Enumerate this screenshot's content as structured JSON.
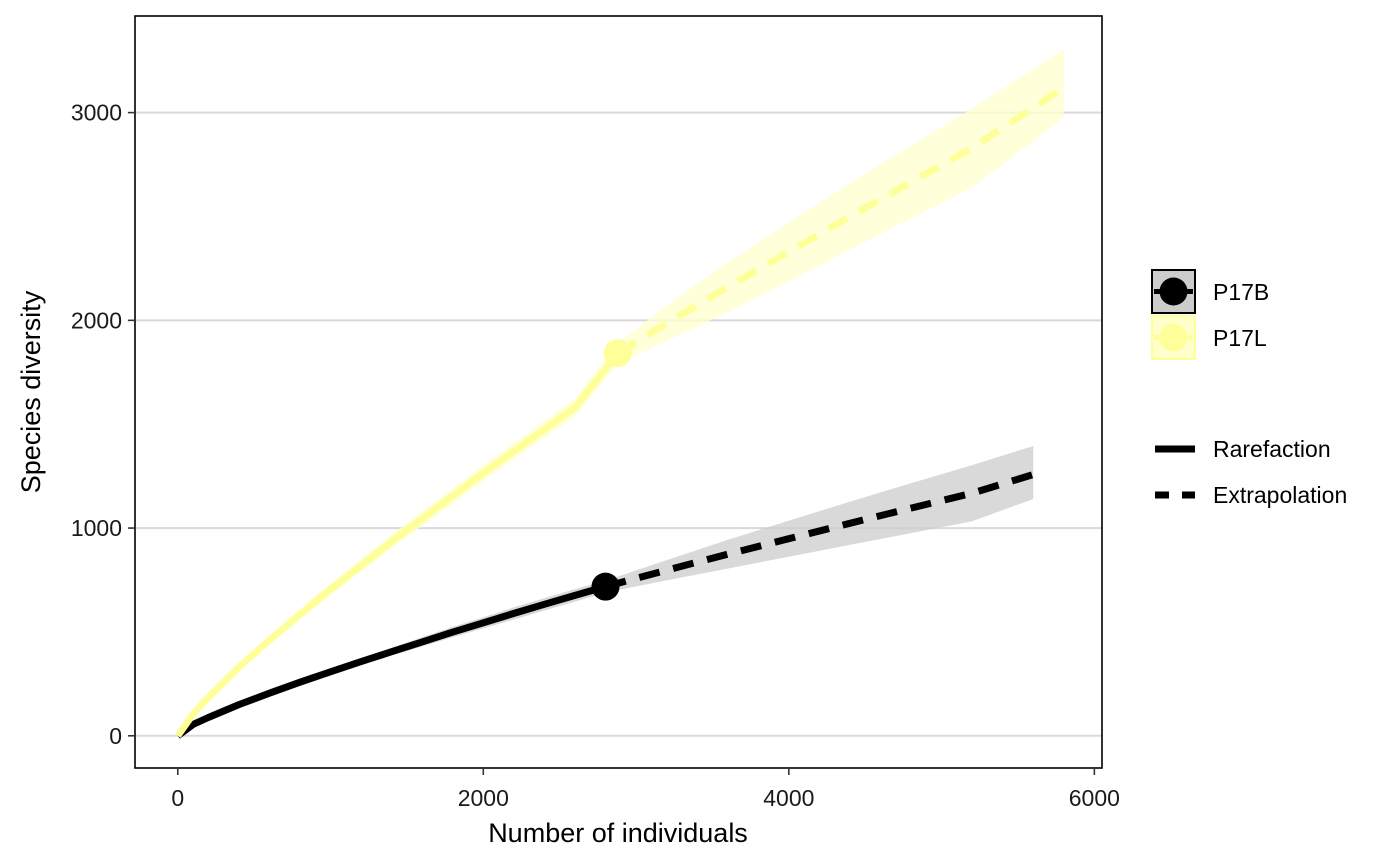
{
  "chart_data": {
    "type": "line",
    "title": "",
    "xlabel": "Number of individuals",
    "ylabel": "Species diversity",
    "xlim": [
      -280,
      6050
    ],
    "ylim": [
      -155,
      3465
    ],
    "xticks": [
      0,
      2000,
      4000,
      6000
    ],
    "yticks": [
      0,
      1000,
      2000,
      3000
    ],
    "xtick_labels": [
      "0",
      "2000",
      "4000",
      "6000"
    ],
    "ytick_labels": [
      "0",
      "1000",
      "2000",
      "3000"
    ],
    "grid": "horizontal major lines only",
    "legend_position": "right",
    "series": [
      {
        "name": "P17B",
        "color": "#000000",
        "band_color": "#cccccc",
        "observed": {
          "x": 2800,
          "y": 718
        },
        "rarefaction": {
          "x": [
            0,
            100,
            200,
            400,
            600,
            800,
            1000,
            1200,
            1400,
            1600,
            1800,
            2000,
            2200,
            2400,
            2600,
            2800
          ],
          "y": [
            0,
            55,
            88,
            150,
            205,
            258,
            308,
            357,
            405,
            452,
            499,
            544,
            589,
            633,
            676,
            718
          ]
        },
        "extrapolation": {
          "x": [
            2800,
            3200,
            3600,
            4000,
            4400,
            4800,
            5200,
            5600
          ],
          "y": [
            718,
            797,
            874,
            949,
            1023,
            1096,
            1168,
            1258
          ]
        },
        "ci_lower": [
          0,
          50,
          80,
          140,
          195,
          246,
          294,
          341,
          386,
          430,
          474,
          517,
          560,
          603,
          646,
          690,
          748,
          805,
          862,
          919,
          976,
          1033,
          1140
        ],
        "ci_upper": [
          0,
          60,
          96,
          160,
          215,
          270,
          322,
          373,
          424,
          474,
          524,
          571,
          618,
          663,
          706,
          746,
          846,
          943,
          1036,
          1127,
          1216,
          1303,
          1395
        ],
        "ci_x": [
          0,
          100,
          200,
          400,
          600,
          800,
          1000,
          1200,
          1400,
          1600,
          1800,
          2000,
          2200,
          2400,
          2600,
          2800,
          3200,
          3600,
          4000,
          4400,
          4800,
          5200,
          5600
        ]
      },
      {
        "name": "P17L",
        "color": "#ffff99",
        "band_color": "#ffffcc",
        "observed": {
          "x": 2880,
          "y": 1842
        },
        "rarefaction": {
          "x": [
            0,
            100,
            200,
            400,
            600,
            800,
            1000,
            1200,
            1400,
            1600,
            1800,
            2000,
            2200,
            2400,
            2600,
            2880
          ],
          "y": [
            0,
            105,
            185,
            330,
            460,
            585,
            705,
            820,
            935,
            1045,
            1155,
            1265,
            1370,
            1475,
            1580,
            1842
          ]
        },
        "extrapolation": {
          "x": [
            2880,
            3200,
            3600,
            4000,
            4400,
            4800,
            5200,
            5800
          ],
          "y": [
            1842,
            1985,
            2160,
            2330,
            2500,
            2665,
            2830,
            3120
          ]
        },
        "ci_lower": [
          0,
          95,
          172,
          312,
          438,
          560,
          677,
          790,
          902,
          1010,
          1118,
          1226,
          1330,
          1433,
          1536,
          1792,
          1900,
          2040,
          2190,
          2340,
          2490,
          2640,
          2975
        ],
        "ci_upper": [
          0,
          115,
          198,
          348,
          482,
          610,
          733,
          850,
          968,
          1080,
          1192,
          1304,
          1410,
          1517,
          1624,
          1892,
          2070,
          2280,
          2470,
          2660,
          2840,
          3020,
          3305
        ],
        "ci_x": [
          0,
          100,
          200,
          400,
          600,
          800,
          1000,
          1200,
          1400,
          1600,
          1800,
          2000,
          2200,
          2400,
          2600,
          2880,
          3200,
          3600,
          4000,
          4400,
          4800,
          5200,
          5800
        ]
      }
    ],
    "method_legend": [
      {
        "label": "Rarefaction",
        "dash": "solid"
      },
      {
        "label": "Extrapolation",
        "dash": "dashed"
      }
    ]
  }
}
